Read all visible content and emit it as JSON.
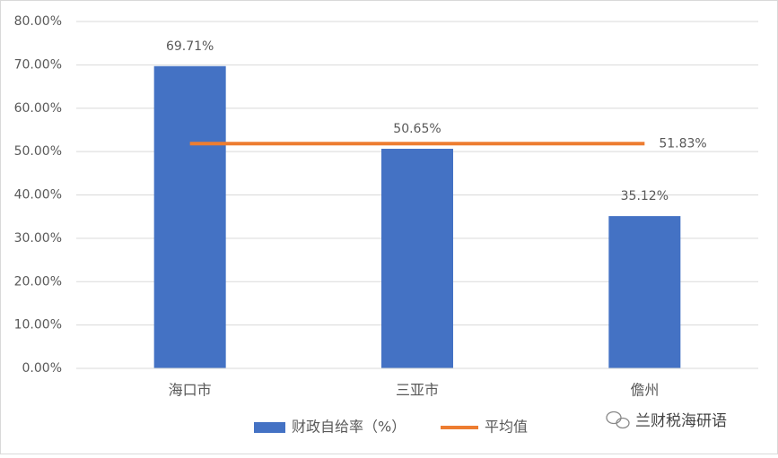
{
  "chart_data": {
    "type": "bar",
    "categories": [
      "海口市",
      "三亚市",
      "儋州"
    ],
    "series": [
      {
        "name": "财政自给率（%）",
        "type": "bar",
        "color": "#4472c4",
        "values": [
          69.71,
          50.65,
          35.12
        ],
        "value_labels": [
          "69.71%",
          "50.65%",
          "35.12%"
        ]
      },
      {
        "name": "平均值",
        "type": "line",
        "color": "#ed7d31",
        "values": [
          51.83,
          51.83,
          51.83
        ],
        "value_labels": [
          null,
          null,
          "51.83%"
        ]
      }
    ],
    "ylim": [
      0,
      80
    ],
    "yticks": [
      {
        "value": 0,
        "label": "0.00%"
      },
      {
        "value": 10,
        "label": "10.00%"
      },
      {
        "value": 20,
        "label": "20.00%"
      },
      {
        "value": 30,
        "label": "30.00%"
      },
      {
        "value": 40,
        "label": "40.00%"
      },
      {
        "value": 50,
        "label": "50.00%"
      },
      {
        "value": 60,
        "label": "60.00%"
      },
      {
        "value": 70,
        "label": "70.00%"
      },
      {
        "value": 80,
        "label": "80.00%"
      }
    ],
    "grid": true,
    "legend": "bottom",
    "watermark": "兰财税海研语"
  }
}
